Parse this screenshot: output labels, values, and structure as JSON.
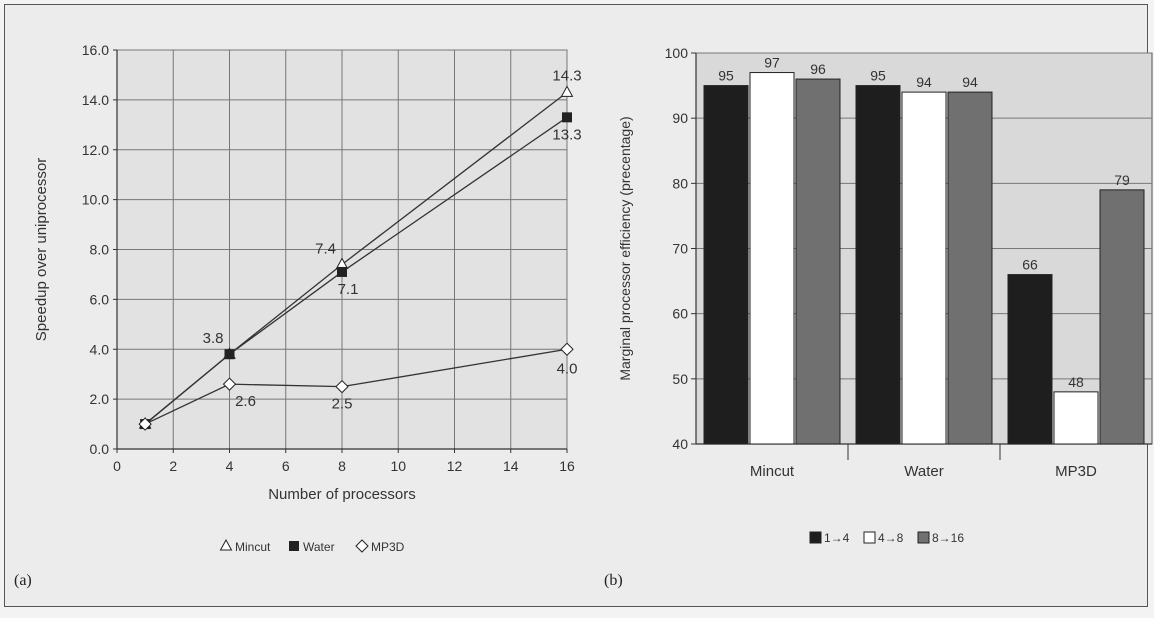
{
  "figure": {
    "panel_a_tag": "(a)",
    "panel_b_tag": "(b)"
  },
  "chart_data": [
    {
      "type": "line",
      "title": "",
      "xlabel": "Number of processors",
      "ylabel": "Speedup over uniprocessor",
      "xlim": [
        0,
        16
      ],
      "ylim": [
        0,
        16
      ],
      "x_ticks": [
        "0",
        "2",
        "4",
        "6",
        "8",
        "10",
        "12",
        "14",
        "16"
      ],
      "y_ticks": [
        "0.0",
        "2.0",
        "4.0",
        "6.0",
        "8.0",
        "10.0",
        "12.0",
        "14.0",
        "16.0"
      ],
      "grid": true,
      "legend_position": "bottom",
      "series": [
        {
          "name": "Mincut",
          "marker": "triangle-open",
          "x": [
            1,
            4,
            8,
            16
          ],
          "y": [
            1.0,
            3.8,
            7.4,
            14.3
          ],
          "point_labels": [
            "",
            "3.8",
            "7.4",
            "14.3"
          ]
        },
        {
          "name": "Water",
          "marker": "square-filled",
          "x": [
            1,
            4,
            8,
            16
          ],
          "y": [
            1.0,
            3.8,
            7.1,
            13.3
          ],
          "point_labels": [
            "",
            "",
            "7.1",
            "13.3"
          ]
        },
        {
          "name": "MP3D",
          "marker": "diamond-open",
          "x": [
            1,
            4,
            8,
            16
          ],
          "y": [
            1.0,
            2.6,
            2.5,
            4.0
          ],
          "point_labels": [
            "",
            "2.6",
            "2.5",
            "4.0"
          ]
        }
      ]
    },
    {
      "type": "bar",
      "title": "",
      "xlabel": "",
      "ylabel": "Marginal processor efficiency (precentage)",
      "ylim": [
        40,
        100
      ],
      "y_ticks": [
        "40",
        "50",
        "60",
        "70",
        "80",
        "90",
        "100"
      ],
      "grid": true,
      "legend_position": "bottom",
      "categories": [
        "Mincut",
        "Water",
        "MP3D"
      ],
      "series": [
        {
          "name": "1→4",
          "fill": "dark",
          "values": [
            95,
            95,
            66
          ]
        },
        {
          "name": "4→8",
          "fill": "white",
          "values": [
            97,
            94,
            48
          ]
        },
        {
          "name": "8→16",
          "fill": "gray",
          "values": [
            96,
            94,
            79
          ]
        }
      ]
    }
  ]
}
